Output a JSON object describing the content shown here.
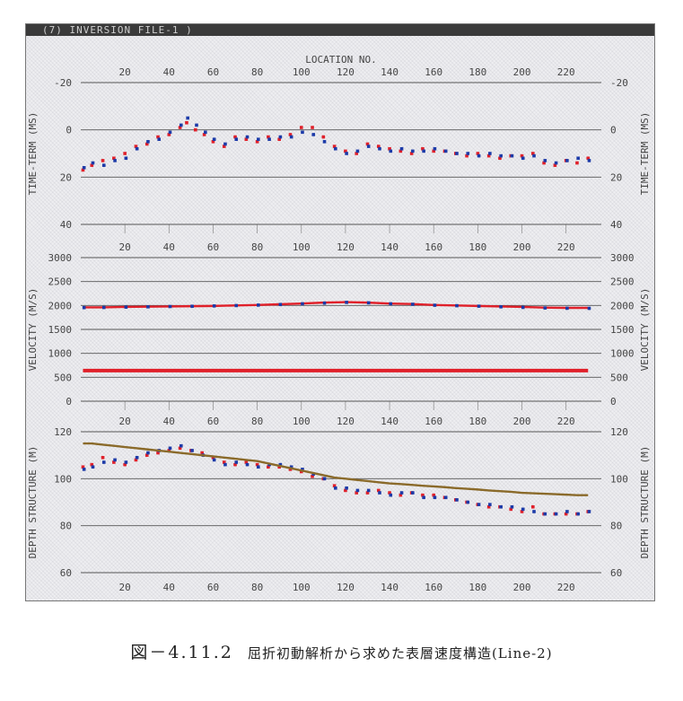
{
  "window_title": "(7) INVERSION FILE-1 )",
  "caption_prefix": "図－4.11.2",
  "caption_text": "屈折初動解析から求めた表層速度構造(Line-2)",
  "colors": {
    "first_series": "#e0202a",
    "second_series": "#1c3aa8",
    "depth_reference": "#8a6a2a"
  },
  "chart_data": [
    {
      "type": "scatter",
      "xlabel": "LOCATION NO.",
      "ylabel": "TIME-TERM (MS)",
      "x_ticks": [
        20,
        40,
        60,
        80,
        100,
        120,
        140,
        160,
        180,
        200,
        220
      ],
      "y_ticks": [
        -20,
        0,
        20,
        40
      ],
      "y_tick_labels": [
        "-20",
        "0",
        "20",
        "40"
      ],
      "ylim": [
        -20,
        40
      ],
      "y_inverted": true,
      "grid": "horizontal",
      "x": [
        1,
        5,
        10,
        15,
        20,
        25,
        30,
        35,
        40,
        45,
        48,
        52,
        56,
        60,
        65,
        70,
        75,
        80,
        85,
        90,
        95,
        100,
        105,
        110,
        115,
        120,
        125,
        130,
        135,
        140,
        145,
        150,
        155,
        160,
        165,
        170,
        175,
        180,
        185,
        190,
        195,
        200,
        205,
        210,
        215,
        220,
        225,
        230
      ],
      "series": [
        {
          "values": [
            17,
            15,
            13,
            12,
            10,
            7,
            6,
            3,
            2,
            -1,
            -3,
            0,
            2,
            5,
            7,
            3,
            4,
            5,
            3,
            4,
            2,
            -1,
            -1,
            3,
            7,
            9,
            10,
            6,
            7,
            8,
            9,
            10,
            8,
            9,
            9,
            10,
            11,
            10,
            11,
            12,
            11,
            11,
            10,
            14,
            15,
            13,
            14,
            12
          ]
        },
        {
          "values": [
            16,
            14,
            15,
            13,
            12,
            8,
            5,
            4,
            1,
            -2,
            -5,
            -2,
            1,
            4,
            6,
            4,
            3,
            4,
            4,
            3,
            3,
            1,
            2,
            5,
            8,
            10,
            9,
            7,
            8,
            9,
            8,
            9,
            9,
            8,
            9,
            10,
            10,
            11,
            10,
            11,
            11,
            12,
            11,
            13,
            14,
            13,
            12,
            13
          ]
        }
      ]
    },
    {
      "type": "scatter",
      "ylabel": "VELOCITY (M/S)",
      "x_ticks": [
        20,
        40,
        60,
        80,
        100,
        120,
        140,
        160,
        180,
        200,
        220
      ],
      "y_ticks": [
        0,
        500,
        1000,
        1500,
        2000,
        2500,
        3000
      ],
      "y_tick_labels": [
        "0",
        "500",
        "1000",
        "1500",
        "2000",
        "2500",
        "3000"
      ],
      "ylim": [
        0,
        3000
      ],
      "grid": "horizontal",
      "x": [
        1,
        10,
        20,
        30,
        40,
        50,
        60,
        70,
        80,
        90,
        100,
        110,
        120,
        130,
        140,
        150,
        160,
        170,
        180,
        190,
        200,
        210,
        220,
        230
      ],
      "series": [
        {
          "values": [
            1960,
            1960,
            1970,
            1975,
            1980,
            1985,
            1990,
            2000,
            2010,
            2025,
            2040,
            2060,
            2070,
            2060,
            2040,
            2030,
            2010,
            2000,
            1990,
            1980,
            1970,
            1955,
            1950,
            1950
          ]
        },
        {
          "values": [
            1955,
            1958,
            1965,
            1972,
            1978,
            1983,
            1990,
            1998,
            2008,
            2020,
            2035,
            2050,
            2065,
            2055,
            2035,
            2025,
            2005,
            1995,
            1985,
            1972,
            1960,
            1948,
            1942,
            1940
          ]
        },
        {
          "values": [
            640,
            640,
            640,
            640,
            640,
            640,
            640,
            640,
            640,
            640,
            640,
            640,
            640,
            640,
            640,
            640,
            640,
            640,
            640,
            640,
            640,
            640,
            640,
            640
          ]
        }
      ]
    },
    {
      "type": "scatter",
      "ylabel": "DEPTH STRUCTURE (M)",
      "x_ticks": [
        20,
        40,
        60,
        80,
        100,
        120,
        140,
        160,
        180,
        200,
        220
      ],
      "y_ticks": [
        60,
        80,
        100,
        120
      ],
      "y_tick_labels": [
        "60",
        "80",
        "100",
        "120"
      ],
      "ylim": [
        60,
        120
      ],
      "grid": "horizontal",
      "x": [
        1,
        5,
        10,
        15,
        20,
        25,
        30,
        35,
        40,
        45,
        50,
        55,
        60,
        65,
        70,
        75,
        80,
        85,
        90,
        95,
        100,
        105,
        110,
        115,
        120,
        125,
        130,
        135,
        140,
        145,
        150,
        155,
        160,
        165,
        170,
        175,
        180,
        185,
        190,
        195,
        200,
        205,
        210,
        215,
        220,
        225,
        230
      ],
      "series": [
        {
          "values": [
            105,
            106,
            109,
            107,
            106,
            108,
            110,
            111,
            112,
            113,
            112,
            111,
            109,
            107,
            106,
            107,
            106,
            105,
            105,
            104,
            103,
            101,
            100,
            97,
            95,
            94,
            94,
            95,
            94,
            93,
            94,
            93,
            93,
            92,
            91,
            90,
            89,
            88,
            88,
            87,
            86,
            88,
            85,
            85,
            85,
            85,
            86
          ]
        },
        {
          "values": [
            104,
            105,
            107,
            108,
            107,
            109,
            111,
            112,
            113,
            114,
            112,
            110,
            108,
            106,
            107,
            106,
            105,
            106,
            106,
            105,
            104,
            102,
            100,
            96,
            96,
            95,
            95,
            94,
            93,
            94,
            94,
            92,
            92,
            92,
            91,
            90,
            89,
            89,
            88,
            88,
            87,
            86,
            85,
            85,
            86,
            85,
            86
          ]
        },
        {
          "values": [
            115,
            115,
            114.5,
            114,
            113.5,
            113,
            112.5,
            112,
            111.5,
            111,
            110.5,
            110,
            109.5,
            109,
            108.5,
            108,
            107.5,
            106.5,
            105.5,
            104.5,
            103.5,
            102.5,
            101.5,
            100.5,
            100,
            99.5,
            99,
            98.5,
            98,
            97.7,
            97.4,
            97,
            96.7,
            96.4,
            96,
            95.7,
            95.4,
            95,
            94.7,
            94.4,
            94,
            93.8,
            93.6,
            93.4,
            93.2,
            93,
            93
          ]
        }
      ]
    }
  ]
}
